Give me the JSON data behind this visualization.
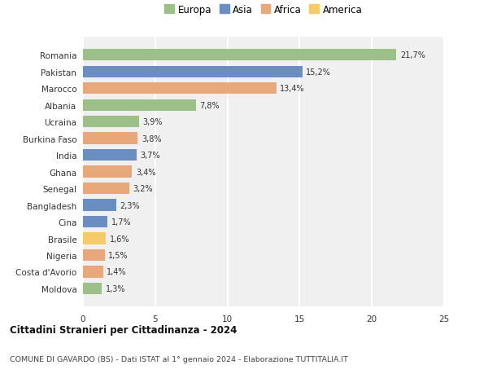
{
  "countries": [
    "Romania",
    "Pakistan",
    "Marocco",
    "Albania",
    "Ucraina",
    "Burkina Faso",
    "India",
    "Ghana",
    "Senegal",
    "Bangladesh",
    "Cina",
    "Brasile",
    "Nigeria",
    "Costa d'Avorio",
    "Moldova"
  ],
  "values": [
    21.7,
    15.2,
    13.4,
    7.8,
    3.9,
    3.8,
    3.7,
    3.4,
    3.2,
    2.3,
    1.7,
    1.6,
    1.5,
    1.4,
    1.3
  ],
  "labels": [
    "21,7%",
    "15,2%",
    "13,4%",
    "7,8%",
    "3,9%",
    "3,8%",
    "3,7%",
    "3,4%",
    "3,2%",
    "2,3%",
    "1,7%",
    "1,6%",
    "1,5%",
    "1,4%",
    "1,3%"
  ],
  "continents": [
    "Europa",
    "Asia",
    "Africa",
    "Europa",
    "Europa",
    "Africa",
    "Asia",
    "Africa",
    "Africa",
    "Asia",
    "Asia",
    "America",
    "Africa",
    "Africa",
    "Europa"
  ],
  "colors": {
    "Europa": "#9DC08B",
    "Asia": "#6A8EC2",
    "Africa": "#E8A87C",
    "America": "#F5CC6A"
  },
  "legend_order": [
    "Europa",
    "Asia",
    "Africa",
    "America"
  ],
  "title1": "Cittadini Stranieri per Cittadinanza - 2024",
  "title2": "COMUNE DI GAVARDO (BS) - Dati ISTAT al 1° gennaio 2024 - Elaborazione TUTTITALIA.IT",
  "xlim": [
    0,
    25
  ],
  "xticks": [
    0,
    5,
    10,
    15,
    20,
    25
  ],
  "background_color": "#ffffff",
  "plot_bg_color": "#f0f0f0"
}
